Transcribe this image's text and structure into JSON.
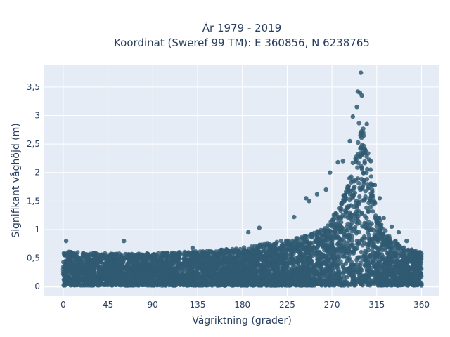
{
  "chart_data": {
    "type": "scatter",
    "title_lines": [
      "År 1979 - 2019",
      "Koordinat (Sweref 99 TM): E 360856, N 6238765"
    ],
    "xlabel": "Vågriktning (grader)",
    "ylabel": "Signifikant våghöjd (m)",
    "xlim": [
      -19,
      378
    ],
    "ylim": [
      -0.17,
      3.88
    ],
    "x_ticks": [
      0,
      45,
      90,
      135,
      180,
      225,
      270,
      315,
      360
    ],
    "x_tick_labels": [
      "0",
      "45",
      "90",
      "135",
      "180",
      "225",
      "270",
      "315",
      "360"
    ],
    "y_ticks": [
      0,
      0.5,
      1,
      1.5,
      2,
      2.5,
      3,
      3.5
    ],
    "y_tick_labels": [
      "0",
      "0,5",
      "1",
      "1,5",
      "2",
      "2,5",
      "3",
      "3,5"
    ],
    "grid": true,
    "marker_color": "#2f5a72",
    "plot_bg": "#e5ecf6",
    "envelope": {
      "direction": [
        0,
        20,
        45,
        90,
        135,
        180,
        200,
        225,
        245,
        260,
        270,
        280,
        290,
        295,
        298,
        300,
        303,
        308,
        315,
        325,
        340,
        360
      ],
      "max_height": [
        0.62,
        0.6,
        0.58,
        0.58,
        0.62,
        0.68,
        0.75,
        0.82,
        0.9,
        1.0,
        1.2,
        1.5,
        2.1,
        2.6,
        3.0,
        3.1,
        2.7,
        2.2,
        1.3,
        0.95,
        0.7,
        0.6
      ]
    },
    "outliers": [
      {
        "x": 3,
        "y": 0.8
      },
      {
        "x": 61,
        "y": 0.8
      },
      {
        "x": 130,
        "y": 0.68
      },
      {
        "x": 186,
        "y": 0.95
      },
      {
        "x": 197,
        "y": 1.03
      },
      {
        "x": 232,
        "y": 1.22
      },
      {
        "x": 244,
        "y": 1.55
      },
      {
        "x": 247,
        "y": 1.5
      },
      {
        "x": 255,
        "y": 1.62
      },
      {
        "x": 264,
        "y": 1.7
      },
      {
        "x": 268,
        "y": 2.0
      },
      {
        "x": 276,
        "y": 2.18
      },
      {
        "x": 281,
        "y": 2.2
      },
      {
        "x": 288,
        "y": 2.55
      },
      {
        "x": 291,
        "y": 2.98
      },
      {
        "x": 295,
        "y": 3.15
      },
      {
        "x": 296,
        "y": 3.42
      },
      {
        "x": 298,
        "y": 3.4
      },
      {
        "x": 299,
        "y": 3.75
      },
      {
        "x": 300,
        "y": 3.35
      },
      {
        "x": 305,
        "y": 2.85
      },
      {
        "x": 309,
        "y": 2.2
      },
      {
        "x": 313,
        "y": 1.78
      },
      {
        "x": 318,
        "y": 1.55
      },
      {
        "x": 322,
        "y": 1.2
      },
      {
        "x": 330,
        "y": 1.05
      },
      {
        "x": 337,
        "y": 0.95
      },
      {
        "x": 345,
        "y": 0.8
      }
    ]
  }
}
